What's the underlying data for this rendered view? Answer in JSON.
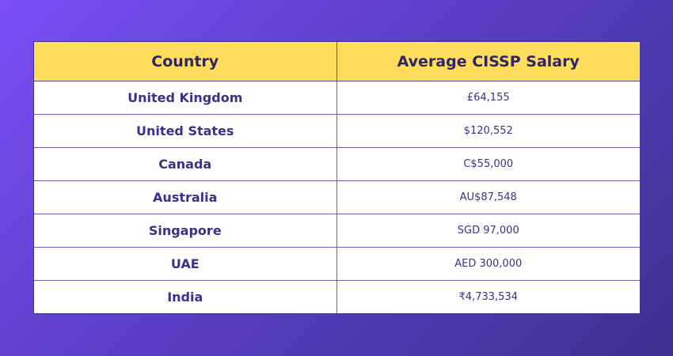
{
  "table": {
    "headers": [
      "Country",
      "Average CISSP Salary"
    ],
    "rows": [
      {
        "country": "United Kingdom",
        "salary": "£64,155"
      },
      {
        "country": "United States",
        "salary": "$120,552"
      },
      {
        "country": "Canada",
        "salary": "C$55,000"
      },
      {
        "country": "Australia",
        "salary": "AU$87,548"
      },
      {
        "country": "Singapore",
        "salary": "SGD 97,000"
      },
      {
        "country": "UAE",
        "salary": "AED 300,000"
      },
      {
        "country": "India",
        "salary": "₹4,733,534"
      }
    ]
  },
  "colors": {
    "background_start": "#7b4ff5",
    "background_end": "#3f2f8f",
    "header_fill": "#fedd5c",
    "text": "#3d2f8a"
  }
}
